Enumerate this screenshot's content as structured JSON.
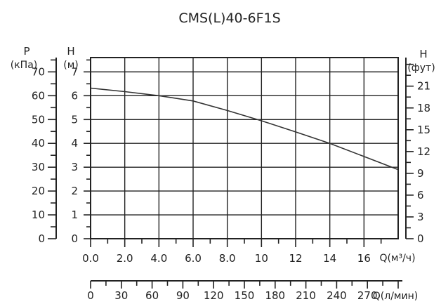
{
  "chart_data": {
    "type": "line",
    "title": "CMS(L)40-6F1S",
    "x_axis": {
      "label": "Q(м³/ч)",
      "range": [
        0,
        18
      ],
      "ticks": [
        "0.0",
        "2.0",
        "4.0",
        "6.0",
        "8.0",
        "10",
        "12",
        "14",
        "16"
      ]
    },
    "x2_axis": {
      "label": "Q(л/мин)",
      "range": [
        0,
        300
      ],
      "ticks": [
        "0",
        "30",
        "60",
        "90",
        "120",
        "150",
        "180",
        "210",
        "240",
        "270"
      ]
    },
    "y_axis": {
      "label": "H",
      "unit": "(м)",
      "range": [
        0,
        7.6
      ],
      "ticks": [
        "0",
        "1",
        "2",
        "3",
        "4",
        "5",
        "6",
        "7"
      ]
    },
    "y_pressure_axis": {
      "label": "P",
      "unit": "(кПа)",
      "range": [
        0,
        76
      ],
      "ticks": [
        "0",
        "10",
        "20",
        "30",
        "40",
        "50",
        "60",
        "70"
      ]
    },
    "y_feet_axis": {
      "label": "H",
      "unit": "(фут)",
      "ticks": [
        "0",
        "3",
        "6",
        "9",
        "12",
        "15",
        "18",
        "21"
      ]
    },
    "grid": true,
    "series": [
      {
        "x": [
          0,
          2,
          4,
          6,
          8,
          10,
          12,
          14,
          16,
          18
        ],
        "y": [
          6.32,
          6.17,
          6.0,
          5.78,
          5.38,
          4.95,
          4.48,
          4.0,
          3.45,
          2.9
        ]
      }
    ]
  }
}
